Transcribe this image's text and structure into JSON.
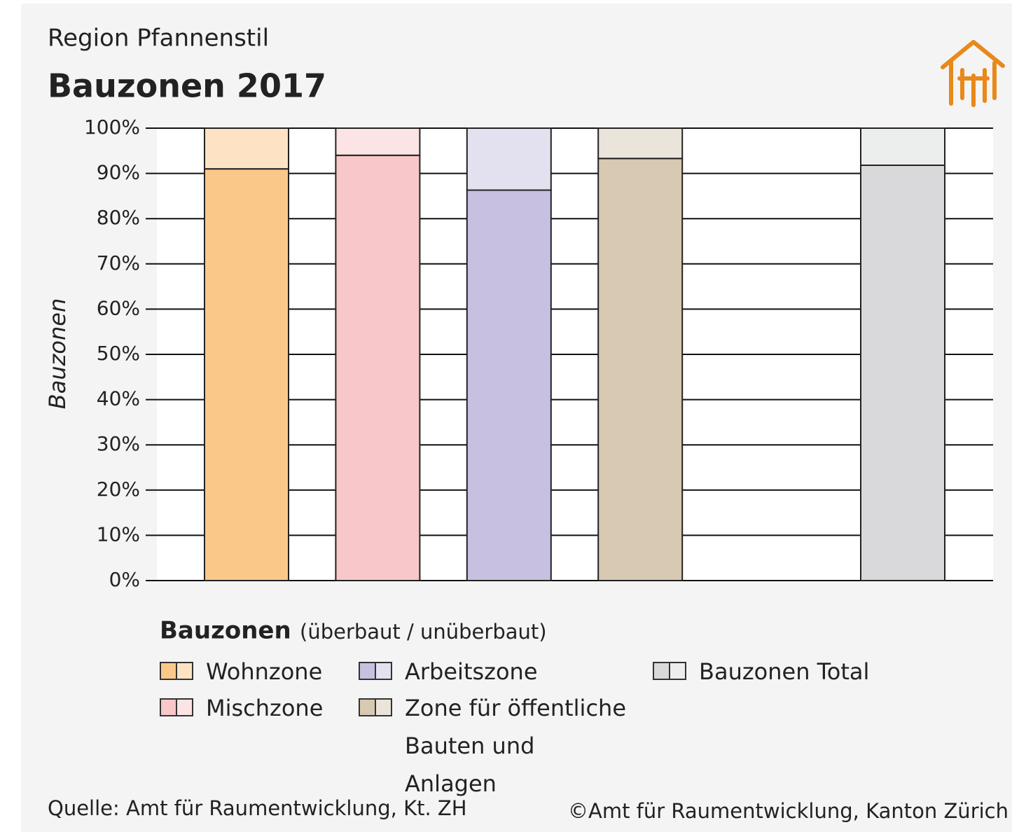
{
  "chart_data": {
    "type": "stacked_bar",
    "subtitle": "Region Pfannenstil",
    "title": "Bauzonen 2017",
    "ylabel": "Bauzonen",
    "categories": [
      "Wohnzone",
      "Mischzone",
      "Arbeitszone",
      "Zone für öffentliche Bauten und Anlagen",
      null,
      "Bauzonen Total"
    ],
    "series": [
      {
        "colors": [
          "#fac98a",
          "#f7c7c9",
          "#c8c0e0",
          "#d7c9b2",
          null,
          "#d9d9db"
        ],
        "values": [
          91,
          94,
          86.3,
          93.3,
          null,
          91.8
        ]
      },
      {
        "colors": [
          "#fde3c4",
          "#fce3e4",
          "#e3e0ef",
          "#ebe4da",
          null,
          "#eceded"
        ],
        "values": [
          9,
          6,
          13.7,
          6.7,
          null,
          8.2
        ]
      }
    ],
    "legend_title": "Bauzonen",
    "legend_subtitle": "(überbaut / unüberbaut)",
    "ylim": [
      0,
      100
    ],
    "yticks": [
      {
        "value": 0,
        "label": "0%"
      },
      {
        "value": 10,
        "label": "10%"
      },
      {
        "value": 20,
        "label": "20%"
      },
      {
        "value": 30,
        "label": "30%"
      },
      {
        "value": 40,
        "label": "40%"
      },
      {
        "value": 50,
        "label": "50%"
      },
      {
        "value": 60,
        "label": "60%"
      },
      {
        "value": 70,
        "label": "70%"
      },
      {
        "value": 80,
        "label": "80%"
      },
      {
        "value": 90,
        "label": "90%"
      },
      {
        "value": 100,
        "label": "100%"
      }
    ],
    "grid": true,
    "source": "Quelle:  Amt für Raumentwicklung, Kt. ZH",
    "copyright": "©Amt für Raumentwicklung, Kanton Zürich"
  }
}
